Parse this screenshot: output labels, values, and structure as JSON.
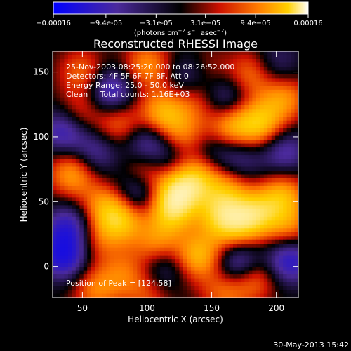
{
  "chart_data": {
    "type": "heatmap",
    "title": "Reconstructed RHESSI Image",
    "xlabel": "Heliocentric X (arcsec)",
    "ylabel": "Heliocentric Y (arcsec)",
    "xlim": [
      27,
      217
    ],
    "ylim": [
      -24,
      166
    ],
    "x_ticks": [
      50,
      100,
      150,
      200
    ],
    "y_ticks": [
      0,
      50,
      100,
      150
    ],
    "colorbar": {
      "min": -0.00016,
      "max": 0.00016,
      "ticks": [
        "-0.00016",
        "-9.4e-05",
        "-3.1e-05",
        "3.1e-05",
        "9.4e-05",
        "0.00016"
      ],
      "unit_label": "(photons cm^-2 s^-1 asec^-2)",
      "colors": [
        "#0000ff",
        "#4b2a9c",
        "#000000",
        "#cc1000",
        "#ff7a00",
        "#ffd000",
        "#ffffff"
      ]
    },
    "annotations": [
      "25-Nov-2003 08:25:20.000 to 08:26:52.000",
      "Detectors: 4F 5F 6F 7F 8F, Att 0",
      "Energy Range: 25.0 - 50.0 keV",
      "Clean     Total counts: 1.16E+03"
    ],
    "peak_label": "Position of Peak = [124,58]",
    "peak": [
      124,
      58
    ],
    "blobs": [
      {
        "x": 124,
        "y": 58,
        "v": 1.0
      },
      {
        "x": 118,
        "y": 42,
        "v": 0.9
      },
      {
        "x": 138,
        "y": 70,
        "v": 0.85
      },
      {
        "x": 155,
        "y": 40,
        "v": 0.75
      },
      {
        "x": 168,
        "y": 30,
        "v": 0.7
      },
      {
        "x": 184,
        "y": 40,
        "v": 0.95
      },
      {
        "x": 205,
        "y": 55,
        "v": 0.8
      },
      {
        "x": 210,
        "y": 30,
        "v": 0.6
      },
      {
        "x": 80,
        "y": 36,
        "v": 0.95
      },
      {
        "x": 66,
        "y": 48,
        "v": 0.6
      },
      {
        "x": 42,
        "y": 72,
        "v": 0.8
      },
      {
        "x": 48,
        "y": 118,
        "v": 0.5
      },
      {
        "x": 78,
        "y": 110,
        "v": 0.6
      },
      {
        "x": 50,
        "y": 150,
        "v": 0.55
      },
      {
        "x": 100,
        "y": 155,
        "v": 0.7
      },
      {
        "x": 112,
        "y": 118,
        "v": 0.85
      },
      {
        "x": 128,
        "y": 100,
        "v": 0.6
      },
      {
        "x": 164,
        "y": 108,
        "v": 0.8
      },
      {
        "x": 162,
        "y": 60,
        "v": 0.65
      },
      {
        "x": 187,
        "y": 110,
        "v": 0.95
      },
      {
        "x": 206,
        "y": 130,
        "v": 0.7
      },
      {
        "x": 180,
        "y": 148,
        "v": 0.6
      },
      {
        "x": 138,
        "y": 130,
        "v": 0.55
      },
      {
        "x": 98,
        "y": 72,
        "v": 0.7
      },
      {
        "x": 140,
        "y": 8,
        "v": 0.9
      },
      {
        "x": 108,
        "y": 15,
        "v": 0.75
      },
      {
        "x": 82,
        "y": -5,
        "v": 0.5
      },
      {
        "x": 182,
        "y": -8,
        "v": 0.75
      },
      {
        "x": 60,
        "y": -18,
        "v": 0.6
      },
      {
        "x": 160,
        "y": -20,
        "v": 0.55
      },
      {
        "x": 60,
        "y": 20,
        "v": 0.45
      },
      {
        "x": 145,
        "y": 150,
        "v": 0.45
      },
      {
        "x": 100,
        "y": -22,
        "v": 0.4
      },
      {
        "x": 36,
        "y": 105,
        "v": -0.75
      },
      {
        "x": 72,
        "y": 135,
        "v": -0.8
      },
      {
        "x": 135,
        "y": 145,
        "v": -0.7
      },
      {
        "x": 160,
        "y": 130,
        "v": -0.6
      },
      {
        "x": 40,
        "y": 30,
        "v": -0.75
      },
      {
        "x": 36,
        "y": 8,
        "v": -0.95
      },
      {
        "x": 93,
        "y": 58,
        "v": -0.8
      },
      {
        "x": 100,
        "y": 95,
        "v": -0.65
      },
      {
        "x": 120,
        "y": 82,
        "v": -0.45
      },
      {
        "x": 150,
        "y": 88,
        "v": -0.4
      },
      {
        "x": 172,
        "y": 82,
        "v": -0.45
      },
      {
        "x": 206,
        "y": 88,
        "v": -0.6
      },
      {
        "x": 210,
        "y": 5,
        "v": -0.85
      },
      {
        "x": 172,
        "y": 2,
        "v": -0.9
      },
      {
        "x": 112,
        "y": 2,
        "v": -0.6
      },
      {
        "x": 200,
        "y": 155,
        "v": -0.4
      },
      {
        "x": 60,
        "y": 88,
        "v": -0.55
      }
    ]
  },
  "footer_timestamp": "30-May-2013 15:42"
}
